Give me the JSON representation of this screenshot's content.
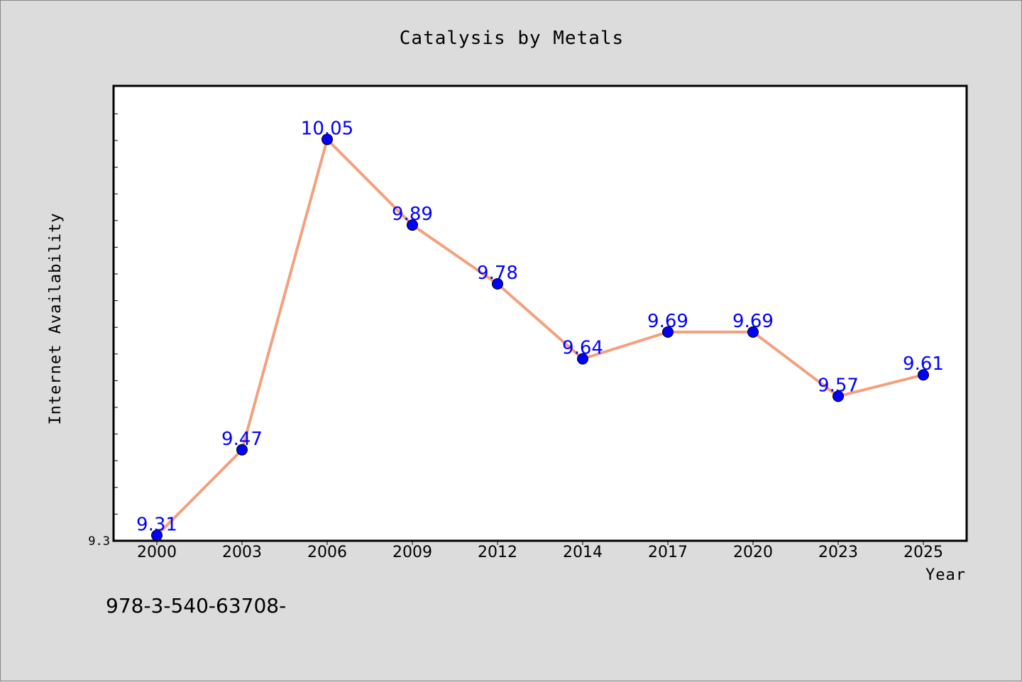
{
  "chart_data": {
    "type": "line",
    "title": "Catalysis by Metals",
    "xlabel": "Year",
    "ylabel": "Internet Availability",
    "categories": [
      "2000",
      "2003",
      "2006",
      "2009",
      "2012",
      "2014",
      "2017",
      "2020",
      "2023",
      "2025"
    ],
    "series": [
      {
        "values": [
          9.31,
          9.47,
          10.05,
          9.89,
          9.78,
          9.64,
          9.69,
          9.69,
          9.57,
          9.61
        ],
        "data_labels": [
          "9.31",
          "9.47",
          "10.05",
          "9.89",
          "9.78",
          "9.64",
          "9.69",
          "9.69",
          "9.57",
          "9.61"
        ]
      }
    ],
    "ylim": [
      9.3,
      10.15
    ],
    "y_tick_labels": [
      "9.3"
    ],
    "grid": false,
    "line_color": "#f4a07e",
    "marker_color": "#0000ff",
    "label_color": "#0000ff",
    "plot_background": "#ffffff",
    "figure_background": "#dcdcdc"
  },
  "footnote": "978-3-540-63708-"
}
